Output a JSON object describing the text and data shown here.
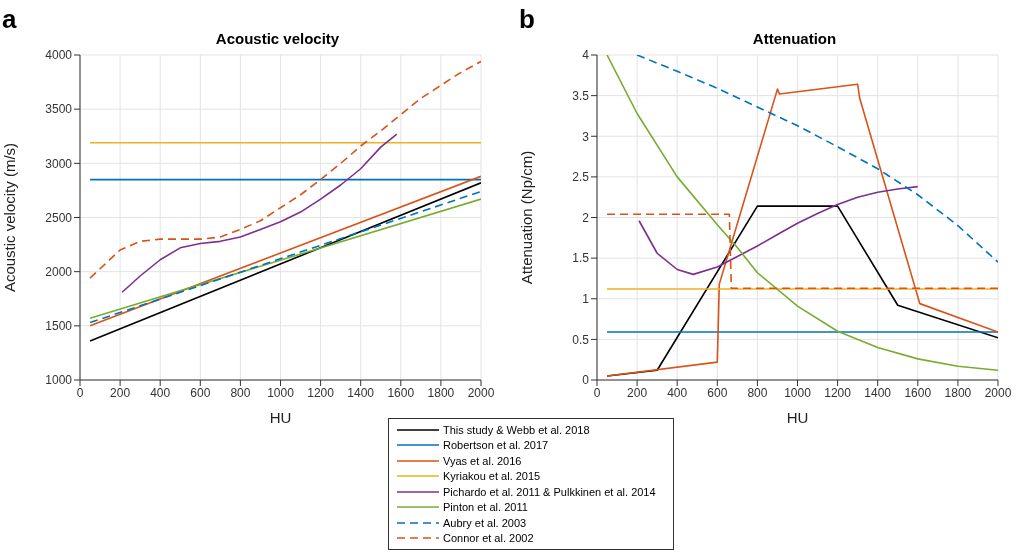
{
  "chart_data": [
    {
      "type": "line",
      "title": "Acoustic velocity",
      "xlabel": "HU",
      "ylabel": "Acoustic velocity (m/s)",
      "annotations": [
        "a"
      ],
      "xlim": [
        0,
        2000
      ],
      "xticks": [
        0,
        200,
        400,
        600,
        800,
        1000,
        1200,
        1400,
        1600,
        1800,
        2000
      ],
      "ylim": [
        1000,
        4000
      ],
      "yticks": [
        1000,
        1500,
        2000,
        2500,
        3000,
        3500,
        4000
      ],
      "grid": true,
      "legend": "bottom",
      "series": [
        {
          "name": "This study & Webb et al. 2018",
          "color": "#000000",
          "line_style": "solid",
          "x": [
            50,
            2000
          ],
          "values": [
            1360,
            2820
          ]
        },
        {
          "name": "Robertson et al. 2017",
          "color": "#0072bd",
          "line_style": "solid",
          "x": [
            50,
            2000
          ],
          "values": [
            2850,
            2850
          ]
        },
        {
          "name": "Vyas et al. 2016",
          "color": "#d95319",
          "line_style": "solid",
          "x": [
            50,
            2000
          ],
          "values": [
            1500,
            2880
          ]
        },
        {
          "name": "Kyriakou et al. 2015",
          "color": "#edb120",
          "line_style": "solid",
          "x": [
            50,
            2000
          ],
          "values": [
            3190,
            3190
          ]
        },
        {
          "name": "Pichardo et al. 2011 & Pulkkinen et al. 2014",
          "color": "#7e2f8e",
          "line_style": "solid",
          "x": [
            210,
            300,
            400,
            500,
            600,
            700,
            800,
            900,
            1000,
            1100,
            1200,
            1300,
            1400,
            1500,
            1580
          ],
          "values": [
            1810,
            1960,
            2110,
            2220,
            2260,
            2280,
            2320,
            2390,
            2460,
            2550,
            2670,
            2800,
            2950,
            3150,
            3270
          ]
        },
        {
          "name": "Pinton et al. 2011",
          "color": "#77ac30",
          "line_style": "solid",
          "x": [
            50,
            2000
          ],
          "values": [
            1570,
            2670
          ]
        },
        {
          "name": "Aubry et al. 2003",
          "color": "#0072bd",
          "line_style": "dashed",
          "x": [
            50,
            2000
          ],
          "values": [
            1530,
            2740
          ]
        },
        {
          "name": "Connor et al. 2002",
          "color": "#d95319",
          "line_style": "dashed",
          "x": [
            50,
            200,
            300,
            400,
            500,
            600,
            700,
            800,
            900,
            1000,
            1100,
            1200,
            1300,
            1400,
            1500,
            1600,
            1700,
            1800,
            1900,
            2000
          ],
          "values": [
            1940,
            2200,
            2280,
            2300,
            2300,
            2300,
            2320,
            2390,
            2470,
            2590,
            2710,
            2850,
            3000,
            3160,
            3300,
            3450,
            3600,
            3720,
            3840,
            3940
          ]
        }
      ]
    },
    {
      "type": "line",
      "title": "Attenuation",
      "xlabel": "HU",
      "ylabel": "Attenuation (Np/cm)",
      "annotations": [
        "b"
      ],
      "xlim": [
        0,
        2000
      ],
      "xticks": [
        0,
        200,
        400,
        600,
        800,
        1000,
        1200,
        1400,
        1600,
        1800,
        2000
      ],
      "ylim": [
        0,
        4
      ],
      "yticks": [
        0,
        0.5,
        1,
        1.5,
        2,
        2.5,
        3,
        3.5,
        4
      ],
      "grid": true,
      "legend": "bottom",
      "series": [
        {
          "name": "This study & Webb et al. 2018",
          "color": "#000000",
          "line_style": "solid",
          "x": [
            50,
            300,
            800,
            1200,
            1500,
            2000
          ],
          "values": [
            0.05,
            0.12,
            2.14,
            2.14,
            0.92,
            0.52
          ]
        },
        {
          "name": "Robertson et al. 2017",
          "color": "#0072bd",
          "line_style": "solid",
          "x": [
            50,
            2000
          ],
          "values": [
            0.59,
            0.59
          ]
        },
        {
          "name": "Vyas et al. 2016",
          "color": "#d95319",
          "line_style": "solid",
          "x": [
            50,
            600,
            610,
            900,
            910,
            1300,
            1310,
            1610,
            2000
          ],
          "values": [
            0.05,
            0.22,
            1.18,
            3.58,
            3.52,
            3.64,
            3.47,
            0.94,
            0.59
          ]
        },
        {
          "name": "Kyriakou et al. 2015",
          "color": "#edb120",
          "line_style": "solid",
          "x": [
            50,
            2000
          ],
          "values": [
            1.12,
            1.12
          ]
        },
        {
          "name": "Pichardo et al. 2011 & Pulkkinen et al. 2014",
          "color": "#7e2f8e",
          "line_style": "solid",
          "x": [
            210,
            300,
            400,
            480,
            600,
            700,
            800,
            900,
            1000,
            1100,
            1200,
            1300,
            1400,
            1500,
            1600
          ],
          "values": [
            1.96,
            1.56,
            1.36,
            1.3,
            1.39,
            1.52,
            1.65,
            1.79,
            1.93,
            2.05,
            2.16,
            2.25,
            2.31,
            2.35,
            2.38
          ]
        },
        {
          "name": "Pinton et al. 2011",
          "color": "#77ac30",
          "line_style": "solid",
          "x": [
            50,
            200,
            400,
            600,
            700,
            800,
            1000,
            1200,
            1400,
            1600,
            1800,
            2000
          ],
          "values": [
            4.0,
            3.28,
            2.5,
            1.91,
            1.63,
            1.32,
            0.91,
            0.6,
            0.4,
            0.26,
            0.17,
            0.12
          ]
        },
        {
          "name": "Aubry et al. 2003",
          "color": "#0072bd",
          "line_style": "dashed",
          "x": [
            200,
            400,
            600,
            800,
            1000,
            1200,
            1400,
            1600,
            1800,
            2000
          ],
          "values": [
            4.0,
            3.8,
            3.59,
            3.36,
            3.13,
            2.87,
            2.6,
            2.28,
            1.9,
            1.45
          ]
        },
        {
          "name": "Connor et al. 2002",
          "color": "#d95319",
          "line_style": "dashed",
          "x": [
            50,
            660,
            670,
            2000
          ],
          "values": [
            2.04,
            2.04,
            1.13,
            1.13
          ]
        }
      ]
    }
  ]
}
